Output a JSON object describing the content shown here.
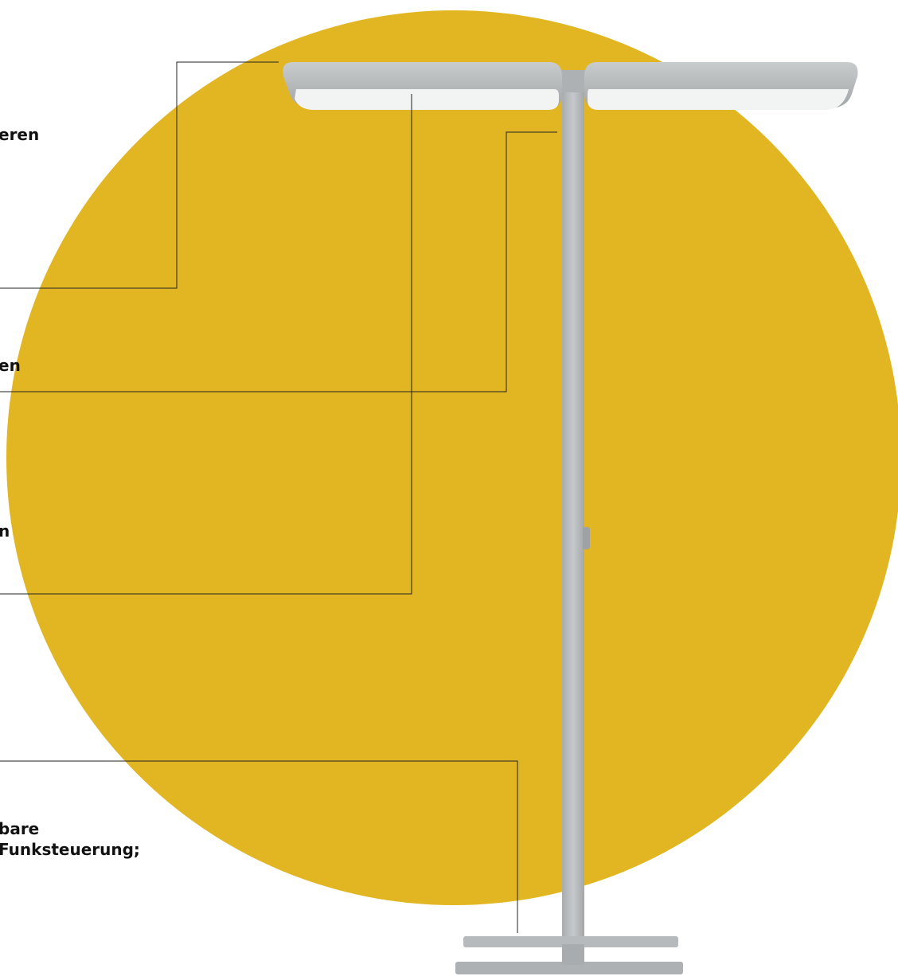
{
  "colors": {
    "circle": "#e1b622",
    "lamp_body": "#b9bcbe",
    "lamp_shadow": "#9fa2a4",
    "diffuser": "#f2f3f3",
    "leader_line": "#222222",
    "text": "#111111"
  },
  "labels": {
    "diffuser_top": "eren",
    "pole_mid": "en",
    "diffuser_low": "n",
    "base_line1": "bare",
    "base_line2": "Funksteuerung;"
  }
}
